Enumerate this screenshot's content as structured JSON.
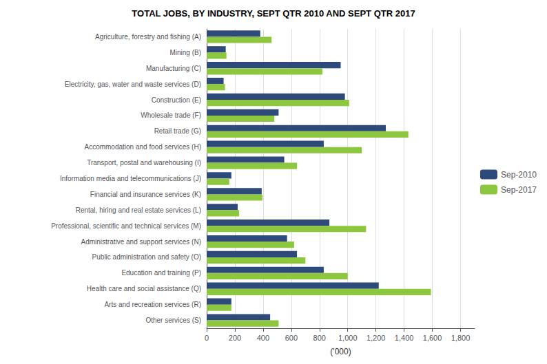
{
  "chart_data": {
    "type": "bar",
    "orientation": "horizontal",
    "title": "TOTAL JOBS, BY INDUSTRY, SEPT QTR 2010 AND SEPT QTR 2017",
    "categories": [
      "Agriculture, forestry and fishing (A)",
      "Mining (B)",
      "Manufacturing (C)",
      "Electricity, gas, water and waste services (D)",
      "Construction (E)",
      "Wholesale trade (F)",
      "Retail trade (G)",
      "Accommodation and food services (H)",
      "Transport, postal and warehousing (I)",
      "Information media and telecommunications (J)",
      "Financial and insurance services (K)",
      "Rental, hiring and real estate services (L)",
      "Professional, scientific and technical services (M)",
      "Administrative and support services (N)",
      "Public administration and safety (O)",
      "Education and training (P)",
      "Health care and social assistance (Q)",
      "Arts and recreation services (R)",
      "Other services (S)"
    ],
    "series": [
      {
        "name": "Sep-2010",
        "color": "#2E4A7A",
        "values": [
          380,
          135,
          950,
          120,
          980,
          510,
          1270,
          830,
          550,
          175,
          390,
          220,
          870,
          570,
          640,
          830,
          1220,
          175,
          450
        ]
      },
      {
        "name": "Sep-2017",
        "color": "#8DC63F",
        "values": [
          460,
          140,
          820,
          130,
          1010,
          480,
          1430,
          1100,
          640,
          160,
          395,
          230,
          1130,
          620,
          700,
          1000,
          1590,
          175,
          510
        ]
      }
    ],
    "xlabel": "('000)",
    "xlim": [
      0,
      1900
    ],
    "xticks": [
      0,
      200,
      400,
      600,
      800,
      {
        "value": 1000,
        "label": "1,000"
      },
      {
        "value": 1200,
        "label": "1,200"
      },
      {
        "value": 1400,
        "label": "1,400"
      },
      {
        "value": 1600,
        "label": "1,600"
      },
      {
        "value": 1800,
        "label": "1,800"
      }
    ],
    "grid": true,
    "legend": "right"
  }
}
